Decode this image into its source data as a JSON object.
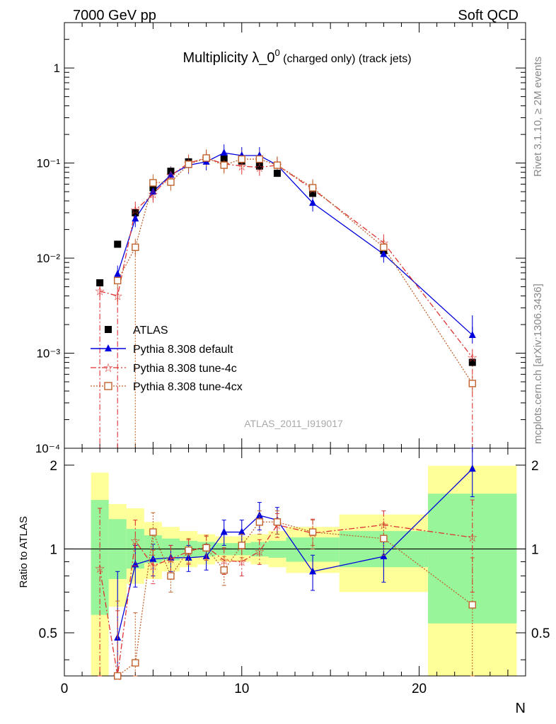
{
  "header": {
    "energy_label": "7000 GeV pp",
    "category_label": "Soft QCD"
  },
  "side_labels": {
    "rivet": "Rivet 3.1.10, ≥ 2M events",
    "mcplots": "mcplots.cern.ch [arXiv:1306.3436]"
  },
  "colors": {
    "atlas": "#000000",
    "default": "#0000dd",
    "tune4c": "#dd3333",
    "tune4cx": "#c0622d",
    "band_inner": "#99f599",
    "band_outer": "#ffff99"
  },
  "chart_data": [
    {
      "type": "scatter",
      "title_main": "Multiplicity λ_0",
      "title_sup": "0",
      "title_tail": " (charged only) (track jets)",
      "analysis_label": "ATLAS_2011_I919017",
      "xlabel": "N",
      "ylabel": "",
      "yscale": "log",
      "xlim": [
        0,
        26
      ],
      "ylim": [
        0.0001,
        3
      ],
      "y_tick_labels": [
        "10⁻⁴",
        "10⁻³",
        "10⁻²",
        "10⁻¹",
        "1"
      ],
      "legend_position": "left",
      "series": [
        {
          "name": "ATLAS",
          "style": "square",
          "x": [
            2,
            3,
            4,
            5,
            6,
            7,
            8,
            9,
            10,
            11,
            12,
            14,
            18,
            23
          ],
          "y": [
            0.0055,
            0.014,
            0.03,
            0.055,
            0.082,
            0.103,
            0.112,
            0.113,
            0.105,
            0.093,
            0.078,
            0.048,
            0.012,
            0.0008
          ]
        },
        {
          "name": "Pythia 8.308 default",
          "style": "triangle",
          "x": [
            3,
            4,
            5,
            6,
            7,
            8,
            9,
            10,
            11,
            12,
            14,
            18,
            23
          ],
          "y": [
            0.0068,
            0.026,
            0.05,
            0.075,
            0.095,
            0.103,
            0.128,
            0.12,
            0.12,
            0.095,
            0.038,
            0.011,
            0.00155
          ]
        },
        {
          "name": "Pythia 8.308 tune-4c",
          "style": "star",
          "x": [
            2,
            3,
            4,
            5,
            6,
            7,
            8,
            9,
            10,
            11,
            12,
            14,
            18,
            23
          ],
          "y": [
            0.0045,
            0.004,
            0.032,
            0.047,
            0.074,
            0.1,
            0.113,
            0.098,
            0.093,
            0.09,
            0.095,
            0.053,
            0.0145,
            0.0009
          ]
        },
        {
          "name": "Pythia 8.308 tune-4cx",
          "style": "open-square",
          "x": [
            3,
            4,
            5,
            6,
            7,
            8,
            9,
            10,
            11,
            12,
            14,
            18,
            23
          ],
          "y": [
            0.0058,
            0.013,
            0.062,
            0.063,
            0.097,
            0.113,
            0.095,
            0.11,
            0.11,
            0.095,
            0.055,
            0.013,
            0.00048
          ]
        }
      ]
    },
    {
      "type": "scatter",
      "ylabel": "Ratio to ATLAS",
      "xlabel": "N",
      "xlim": [
        0,
        26
      ],
      "ylim": [
        0.35,
        2.3
      ],
      "x_ticks": [
        0,
        10,
        20
      ],
      "y_ticks": [
        0.5,
        1,
        2
      ],
      "reference_line": 1,
      "bands": [
        {
          "x0": 1.5,
          "x1": 2.5,
          "inner": [
            0.58,
            1.5
          ],
          "outer": [
            0.3,
            1.88
          ]
        },
        {
          "x0": 2.5,
          "x1": 3.5,
          "inner": [
            0.78,
            1.28
          ],
          "outer": [
            0.62,
            1.45
          ]
        },
        {
          "x0": 3.5,
          "x1": 4.5,
          "inner": [
            0.85,
            1.18
          ],
          "outer": [
            0.75,
            1.4
          ]
        },
        {
          "x0": 4.5,
          "x1": 5.5,
          "inner": [
            0.89,
            1.12
          ],
          "outer": [
            0.78,
            1.25
          ]
        },
        {
          "x0": 5.5,
          "x1": 6.5,
          "inner": [
            0.91,
            1.09
          ],
          "outer": [
            0.83,
            1.2
          ]
        },
        {
          "x0": 6.5,
          "x1": 7.5,
          "inner": [
            0.93,
            1.07
          ],
          "outer": [
            0.86,
            1.16
          ]
        },
        {
          "x0": 7.5,
          "x1": 8.5,
          "inner": [
            0.94,
            1.06
          ],
          "outer": [
            0.88,
            1.13
          ]
        },
        {
          "x0": 8.5,
          "x1": 9.5,
          "inner": [
            0.95,
            1.05
          ],
          "outer": [
            0.9,
            1.11
          ]
        },
        {
          "x0": 9.5,
          "x1": 10.5,
          "inner": [
            0.95,
            1.05
          ],
          "outer": [
            0.9,
            1.11
          ]
        },
        {
          "x0": 10.5,
          "x1": 11.5,
          "inner": [
            0.94,
            1.06
          ],
          "outer": [
            0.88,
            1.13
          ]
        },
        {
          "x0": 11.5,
          "x1": 12.5,
          "inner": [
            0.93,
            1.07
          ],
          "outer": [
            0.86,
            1.16
          ]
        },
        {
          "x0": 12.5,
          "x1": 15.5,
          "inner": [
            0.9,
            1.1
          ],
          "outer": [
            0.82,
            1.2
          ]
        },
        {
          "x0": 15.5,
          "x1": 20.5,
          "inner": [
            0.86,
            1.16
          ],
          "outer": [
            0.7,
            1.33
          ]
        },
        {
          "x0": 20.5,
          "x1": 25.5,
          "inner": [
            0.54,
            1.58
          ],
          "outer": [
            0.3,
            1.99
          ]
        }
      ],
      "series": [
        {
          "name": "Pythia 8.308 default",
          "x": [
            3,
            4,
            5,
            6,
            7,
            8,
            9,
            10,
            11,
            12,
            14,
            18,
            23
          ],
          "y": [
            0.48,
            0.88,
            0.92,
            0.93,
            0.93,
            0.94,
            1.15,
            1.15,
            1.32,
            1.27,
            0.83,
            0.94,
            1.94
          ],
          "err": [
            0.35,
            0.15,
            0.12,
            0.1,
            0.1,
            0.1,
            0.12,
            0.12,
            0.15,
            0.14,
            0.12,
            0.18,
            0.4
          ]
        },
        {
          "name": "Pythia 8.308 tune-4c",
          "x": [
            2,
            3,
            4,
            5,
            6,
            7,
            8,
            9,
            10,
            11,
            12,
            14,
            18,
            23
          ],
          "y": [
            0.85,
            0.3,
            1.07,
            0.87,
            0.92,
            0.98,
            1.02,
            0.91,
            0.9,
            0.98,
            1.22,
            1.14,
            1.22,
            1.1
          ],
          "err": [
            0.55,
            0.3,
            0.2,
            0.12,
            0.11,
            0.1,
            0.1,
            0.1,
            0.1,
            0.1,
            0.12,
            0.14,
            0.15,
            0.4
          ]
        },
        {
          "name": "Pythia 8.308 tune-4cx",
          "x": [
            3,
            4,
            5,
            6,
            7,
            8,
            9,
            10,
            11,
            12,
            14,
            18,
            23
          ],
          "y": [
            0.35,
            0.39,
            1.15,
            0.8,
            0.99,
            1.01,
            0.84,
            1.03,
            1.25,
            1.25,
            1.15,
            1.09,
            0.63
          ],
          "err": [
            0.3,
            0.2,
            0.2,
            0.1,
            0.1,
            0.1,
            0.1,
            0.1,
            0.12,
            0.12,
            0.12,
            0.14,
            0.3
          ]
        }
      ]
    }
  ]
}
